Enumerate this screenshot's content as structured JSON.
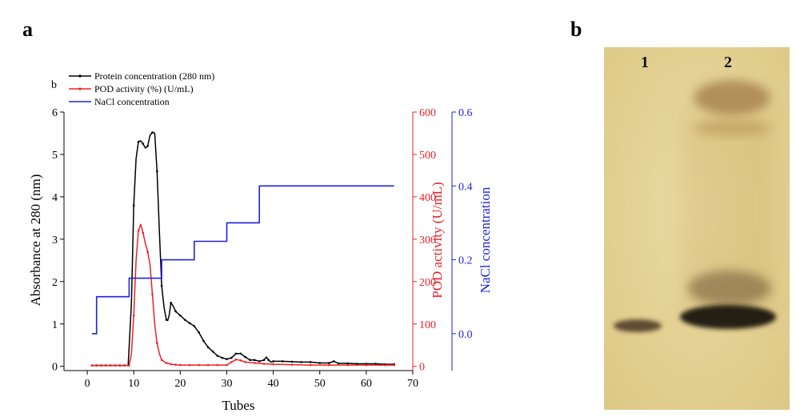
{
  "panels": {
    "a_label": "a",
    "b_label": "b",
    "inner_label": "b"
  },
  "colors": {
    "protein": "#000000",
    "pod": "#e8232a",
    "nacl": "#1f22e0"
  },
  "chart_data": {
    "type": "line",
    "xlabel": "Tubes",
    "xlim": [
      -5,
      70
    ],
    "xticks": [
      0,
      10,
      20,
      30,
      40,
      50,
      60,
      70
    ],
    "axes": {
      "left": {
        "label": "Absorbance at 280 (nm)",
        "ylim": [
          -0.1,
          6
        ],
        "ticks": [
          0,
          1,
          2,
          3,
          4,
          5,
          6
        ]
      },
      "right1": {
        "label": "POD activity (U/mL)",
        "ylim": [
          -10,
          600
        ],
        "ticks": [
          0,
          100,
          200,
          300,
          400,
          500,
          600
        ]
      },
      "right2": {
        "label": "NaCl concentration",
        "ylim": [
          -0.1,
          0.6
        ],
        "ticks": [
          "0.0",
          "0.2",
          "0.4",
          "0.6"
        ]
      }
    },
    "legend_position": "top-left",
    "series": [
      {
        "name": "Protein concentration (280 nm)",
        "axis": "left",
        "x": [
          1,
          2,
          3,
          4,
          5,
          6,
          7,
          8,
          8.8,
          9.5,
          10,
          10.5,
          11,
          11.5,
          12,
          12.5,
          13,
          13.5,
          14,
          14.5,
          15,
          15.5,
          16,
          16.5,
          17,
          17.3,
          17.6,
          18,
          18.5,
          19,
          20,
          21,
          22,
          23,
          24,
          25,
          26,
          27,
          28,
          29,
          30,
          31,
          32,
          33,
          34,
          35,
          36,
          37,
          38,
          38.5,
          39,
          39.5,
          40,
          42,
          44,
          46,
          48,
          50,
          52,
          53,
          54,
          56,
          58,
          60,
          62,
          64,
          66
        ],
        "y": [
          0.02,
          0.02,
          0.02,
          0.02,
          0.02,
          0.02,
          0.02,
          0.02,
          0.02,
          1.5,
          3.8,
          4.9,
          5.3,
          5.32,
          5.25,
          5.15,
          5.2,
          5.45,
          5.52,
          5.5,
          4.6,
          3.2,
          1.9,
          1.4,
          1.1,
          1.08,
          1.2,
          1.5,
          1.42,
          1.3,
          1.2,
          1.1,
          1.02,
          0.95,
          0.8,
          0.6,
          0.45,
          0.35,
          0.25,
          0.2,
          0.17,
          0.2,
          0.3,
          0.3,
          0.22,
          0.15,
          0.15,
          0.12,
          0.15,
          0.22,
          0.15,
          0.1,
          0.12,
          0.12,
          0.11,
          0.1,
          0.1,
          0.08,
          0.08,
          0.12,
          0.07,
          0.07,
          0.06,
          0.06,
          0.06,
          0.05,
          0.05
        ]
      },
      {
        "name": "POD activity (%) (U/mL)",
        "axis": "right1",
        "x": [
          1,
          2,
          3,
          4,
          5,
          6,
          7,
          8,
          9,
          9.5,
          10,
          10.5,
          11,
          11.5,
          12,
          12.5,
          13,
          13.5,
          14,
          14.5,
          15,
          15.5,
          16,
          17,
          18,
          19,
          20,
          22,
          24,
          26,
          28,
          30,
          31,
          32,
          33,
          34,
          36,
          38,
          40,
          44,
          48,
          52,
          56,
          60,
          64,
          66
        ],
        "y": [
          2,
          2,
          2,
          2,
          2,
          2,
          2,
          2,
          2,
          30,
          120,
          250,
          320,
          335,
          315,
          290,
          270,
          240,
          170,
          100,
          55,
          30,
          15,
          8,
          5,
          4,
          3,
          3,
          3,
          3,
          3,
          3,
          10,
          16,
          14,
          10,
          8,
          6,
          5,
          4,
          3,
          3,
          3,
          3,
          3,
          3
        ]
      },
      {
        "name": "NaCl concentration",
        "axis": "right2",
        "x": [
          1,
          2,
          2,
          9,
          9,
          16,
          16,
          23,
          23,
          30,
          30,
          37,
          37,
          66
        ],
        "y": [
          0,
          0,
          0.1,
          0.1,
          0.15,
          0.15,
          0.2,
          0.2,
          0.25,
          0.25,
          0.3,
          0.3,
          0.4,
          0.4
        ]
      }
    ]
  },
  "gel": {
    "lane1_label": "1",
    "lane2_label": "2"
  }
}
